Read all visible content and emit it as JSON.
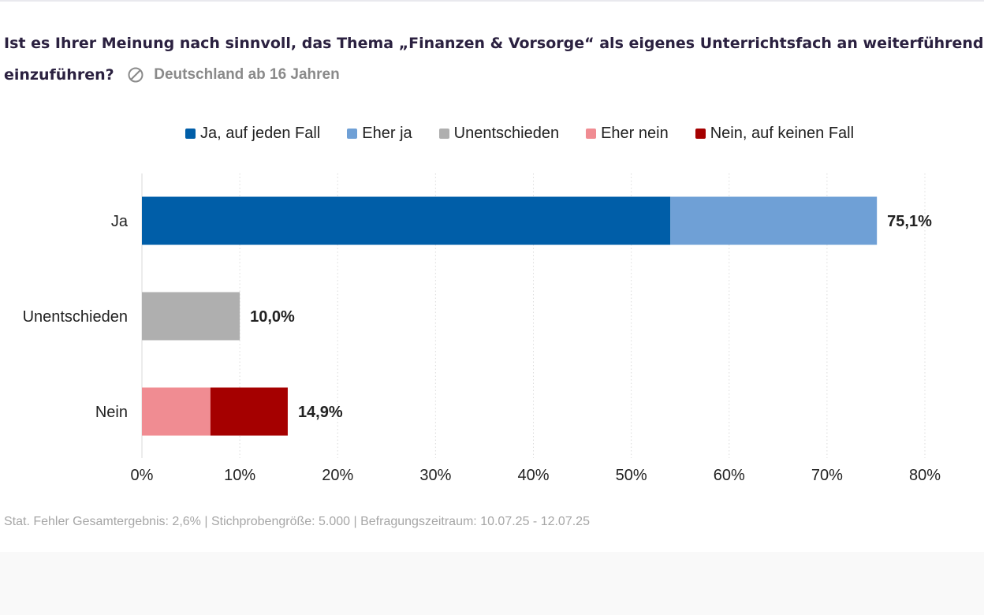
{
  "header": {
    "title_line1": "Ist es Ihrer Meinung nach sinnvoll, das Thema „Finanzen & Vorsorge“ als eigenes Unterrichtsfach an weiterführenden Sc",
    "title_line2": "einzuführen?",
    "subtitle": "Deutschland ab 16 Jahren",
    "subtitle_icon": "location-pin-icon"
  },
  "footer": {
    "note": "Stat. Fehler Gesamtergebnis: 2,6% | Stichprobengröße: 5.000 | Befragungszeitraum: 10.07.25 - 12.07.25"
  },
  "colors": {
    "ja_auf_jeden_fall": "#005ea8",
    "eher_ja": "#6fa0d6",
    "unentschieden": "#afafaf",
    "eher_nein": "#f08c92",
    "nein_auf_keinen_fall": "#a50000"
  },
  "chart_data": {
    "type": "bar",
    "orientation": "horizontal",
    "stacked": true,
    "categories": [
      "Ja",
      "Unentschieden",
      "Nein"
    ],
    "series": [
      {
        "name": "Ja, auf jeden Fall",
        "color": "#005ea8",
        "values": [
          54.0,
          0,
          0
        ]
      },
      {
        "name": "Eher ja",
        "color": "#6fa0d6",
        "values": [
          21.1,
          0,
          0
        ]
      },
      {
        "name": "Unentschieden",
        "color": "#afafaf",
        "values": [
          0,
          10.0,
          0
        ]
      },
      {
        "name": "Eher nein",
        "color": "#f08c92",
        "values": [
          0,
          0,
          7.0
        ]
      },
      {
        "name": "Nein, auf keinen Fall",
        "color": "#a50000",
        "values": [
          0,
          0,
          7.9
        ]
      }
    ],
    "totals": [
      "75,1%",
      "10,0%",
      "14,9%"
    ],
    "xlim": [
      0,
      80
    ],
    "xticks": [
      "0%",
      "10%",
      "20%",
      "30%",
      "40%",
      "50%",
      "60%",
      "70%",
      "80%"
    ],
    "xtick_values": [
      0,
      10,
      20,
      30,
      40,
      50,
      60,
      70,
      80
    ],
    "grid": true,
    "legend_position": "top"
  }
}
